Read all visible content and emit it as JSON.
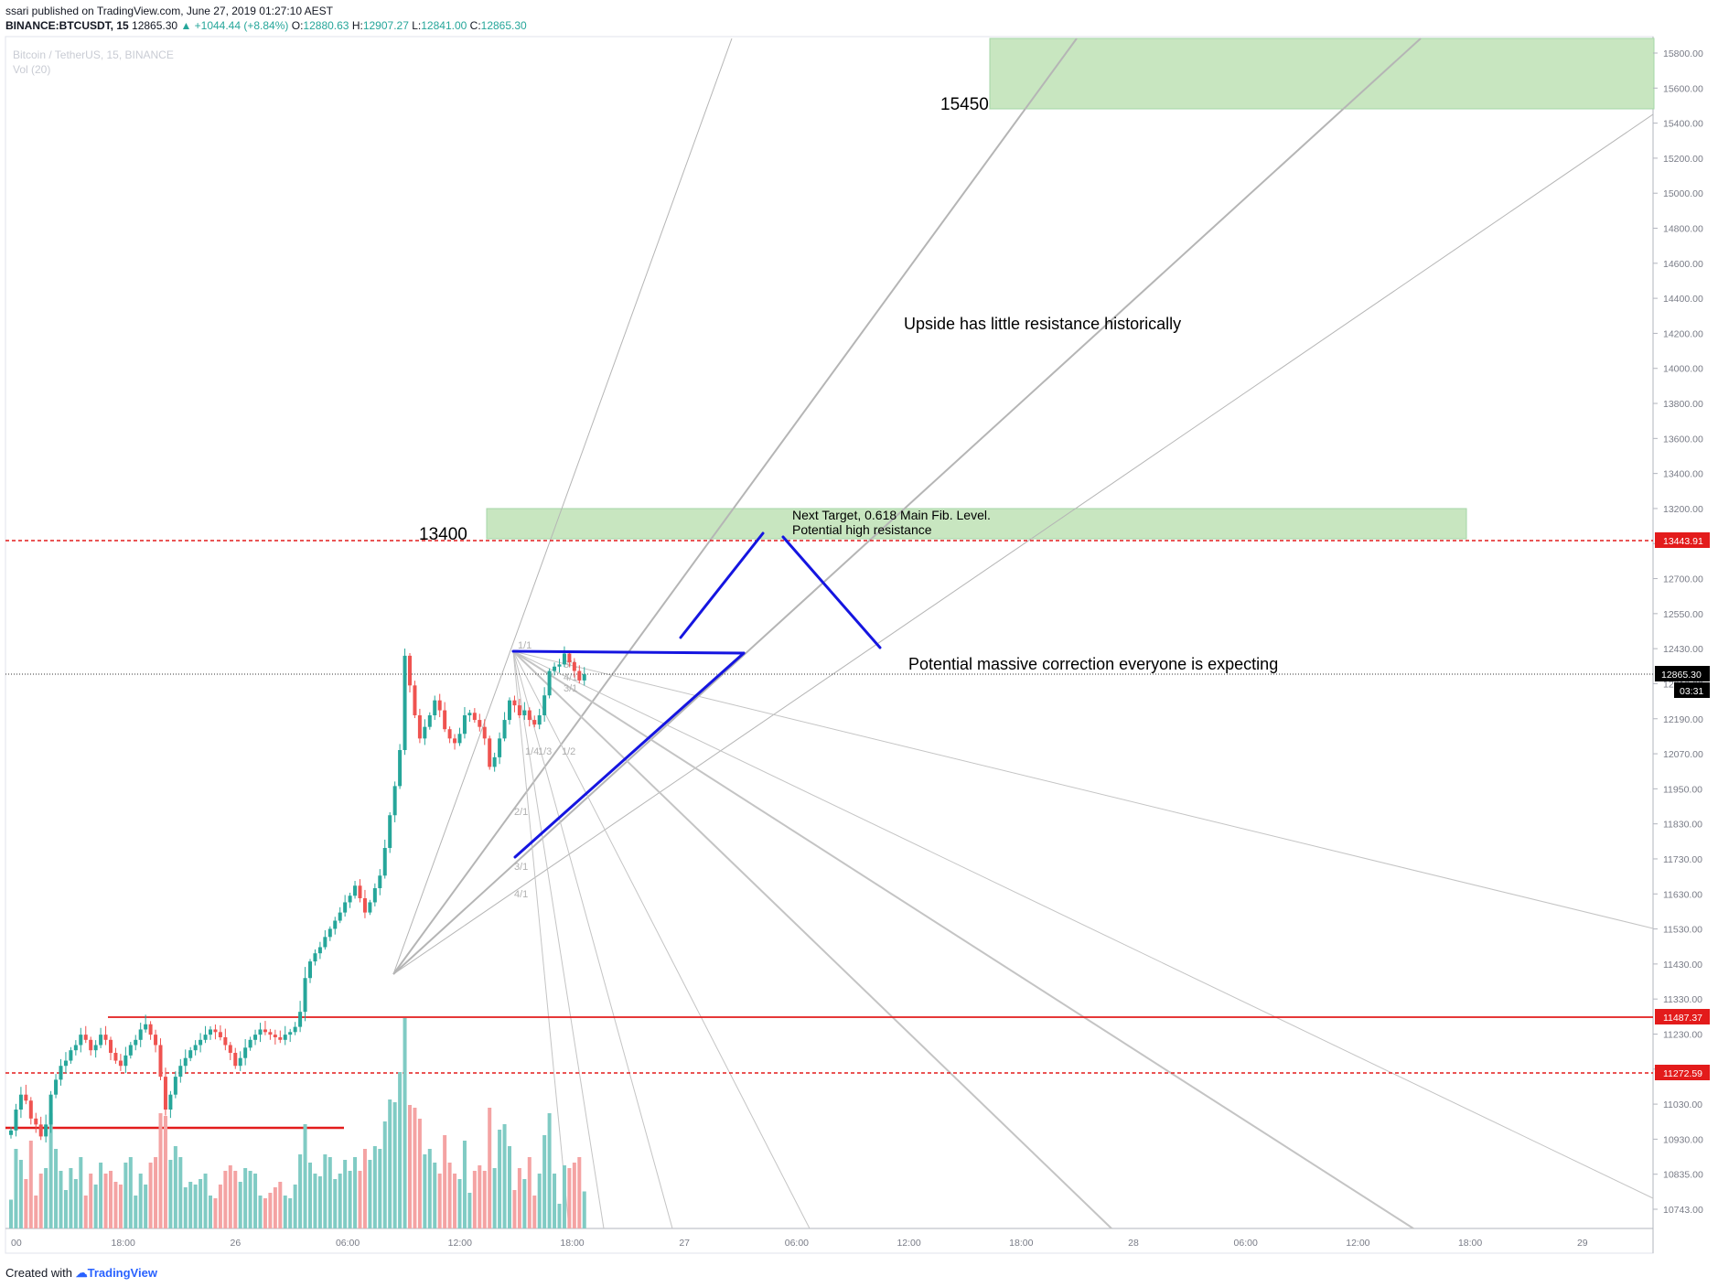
{
  "header": {
    "publisher": "ssari published on TradingView.com, June 27, 2019 01:27:10 AEST",
    "symbol": "BINANCE:BTCUSDT, 15",
    "last": "12865.30",
    "change": "▲ +1044.44 (+8.84%)",
    "o_label": "O:",
    "o": "12880.63",
    "h_label": "H:",
    "h": "12907.27",
    "l_label": "L:",
    "l": "12841.00",
    "c_label": "C:",
    "c": "12865.30"
  },
  "watermark": {
    "title": "Bitcoin / TetherUS, 15, BINANCE",
    "vol": "Vol (20)"
  },
  "footer": {
    "created": "Created with",
    "brand": "TradingView"
  },
  "colors": {
    "up": "#26a69a",
    "down": "#ef5350",
    "vol_up": "#80cbc4",
    "vol_down": "#f4a3a3",
    "zone": "#c8e6c0",
    "zone_border": "#a5d6a7",
    "blue": "#1515e0",
    "red": "#e31b1b",
    "fan": "#b5b5b5"
  },
  "chart_data": {
    "type": "candlestick",
    "symbol": "BTCUSDT",
    "interval": "15",
    "y_ticks": [
      "15800.00",
      "15600.00",
      "15400.00",
      "15200.00",
      "15000.00",
      "14800.00",
      "14600.00",
      "14400.00",
      "14200.00",
      "14000.00",
      "13800.00",
      "13600.00",
      "13400.00",
      "13200.00",
      "13000.00",
      "12700.00",
      "12550.00",
      "12430.00",
      "12310.00",
      "12190.00",
      "12070.00",
      "11950.00",
      "11830.00",
      "11730.00",
      "11630.00",
      "11530.00",
      "11430.00",
      "11330.00",
      "11230.00",
      "11130.00",
      "11030.00",
      "10930.00",
      "10835.00",
      "10743.00"
    ],
    "x_ticks": [
      "00",
      "18:00",
      "26",
      "06:00",
      "12:00",
      "18:00",
      "27",
      "06:00",
      "12:00",
      "18:00",
      "28",
      "06:00",
      "12:00",
      "18:00",
      "29"
    ],
    "price_badges": [
      {
        "label": "13443.91",
        "color": "#e31b1b"
      },
      {
        "label": "12865.30",
        "color": "#000000"
      },
      {
        "label": "03:31",
        "color": "#000000"
      },
      {
        "label": "11487.37",
        "color": "#e31b1b"
      },
      {
        "label": "11272.59",
        "color": "#e31b1b"
      }
    ],
    "zones": [
      {
        "label": "15450",
        "from": 15500,
        "to": 15850
      },
      {
        "label": "13400",
        "from": 13420,
        "to": 13580
      }
    ],
    "annotations": [
      "Upside has little resistance historically",
      "Next Target, 0.618 Main Fib. Level.",
      "Potential high resistance",
      "Potential massive correction everyone is expecting"
    ],
    "fan_labels": [
      "1/1",
      "8/1",
      "4/1",
      "3/1",
      "1/4",
      "1/3",
      "1/2",
      "2/1",
      "3/1",
      "4/1"
    ],
    "horizontal_levels": [
      13443.91,
      12865.3,
      11487.37,
      11272.59
    ],
    "last_price": 12865.3,
    "close_series": [
      11080,
      11150,
      11200,
      11180,
      11120,
      11100,
      11060,
      11100,
      11200,
      11250,
      11300,
      11320,
      11360,
      11380,
      11420,
      11400,
      11360,
      11380,
      11420,
      11400,
      11350,
      11320,
      11300,
      11340,
      11380,
      11400,
      11440,
      11460,
      11420,
      11380,
      11260,
      11150,
      11200,
      11260,
      11300,
      11330,
      11360,
      11380,
      11400,
      11420,
      11440,
      11430,
      11410,
      11380,
      11350,
      11300,
      11330,
      11370,
      11400,
      11420,
      11440,
      11430,
      11420,
      11410,
      11400,
      11420,
      11430,
      11450,
      11500,
      11580,
      11640,
      11680,
      11710,
      11760,
      11800,
      11840,
      11880,
      11930,
      11960,
      12000,
      11950,
      11880,
      11930,
      11990,
      12040,
      12150,
      12280,
      12400,
      12550,
      12950,
      12820,
      12700,
      12600,
      12650,
      12700,
      12760,
      12720,
      12640,
      12600,
      12580,
      12620,
      12700,
      12710,
      12680,
      12650,
      12600,
      12480,
      12520,
      12600,
      12680,
      12760,
      12740,
      12700,
      12720,
      12680,
      12660,
      12700,
      12780,
      12880,
      12900,
      12910,
      12960,
      12920,
      12880,
      12840,
      12865
    ]
  }
}
